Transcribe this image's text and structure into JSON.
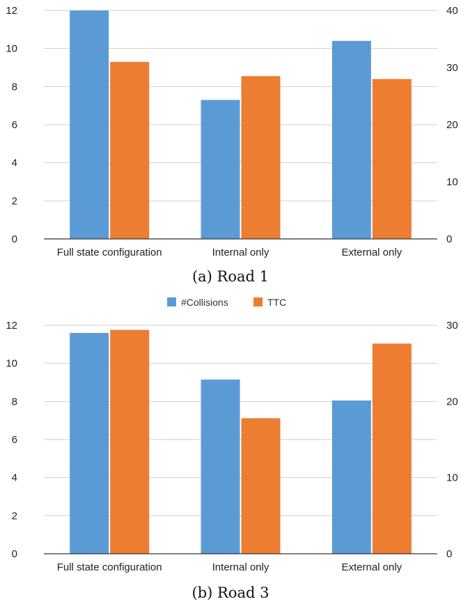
{
  "colors": {
    "collisions": "#5b9bd5",
    "ttc": "#ed7d31",
    "grid": "#cfcfcf",
    "axis": "#333333"
  },
  "legend": {
    "items": [
      {
        "label": "#Collisions",
        "color": "#5b9bd5"
      },
      {
        "label": "TTC",
        "color": "#ed7d31"
      }
    ]
  },
  "chart_data": [
    {
      "type": "bar",
      "caption": "(a) Road 1",
      "categories": [
        "Full state configuration",
        "Internal only",
        "External only"
      ],
      "series": [
        {
          "name": "#Collisions",
          "axis": "left",
          "values": [
            12.0,
            7.3,
            10.4
          ]
        },
        {
          "name": "TTC",
          "axis": "right",
          "values": [
            31.0,
            28.5,
            28.0
          ]
        }
      ],
      "ylim_left": [
        0,
        12
      ],
      "yticks_left": [
        0,
        2,
        4,
        6,
        8,
        10,
        12
      ],
      "ylim_right": [
        0,
        40
      ],
      "yticks_right": [
        0,
        10,
        20,
        30,
        40
      ],
      "grid": true
    },
    {
      "type": "bar",
      "caption": "(b) Road 3",
      "categories": [
        "Full state configuration",
        "Internal only",
        "External only"
      ],
      "series": [
        {
          "name": "#Collisions",
          "axis": "left",
          "values": [
            11.6,
            9.15,
            8.05
          ]
        },
        {
          "name": "TTC",
          "axis": "right",
          "values": [
            29.4,
            17.8,
            27.6
          ]
        }
      ],
      "ylim_left": [
        0,
        12
      ],
      "yticks_left": [
        0,
        2,
        4,
        6,
        8,
        10,
        12
      ],
      "ylim_right": [
        0,
        30
      ],
      "yticks_right": [
        0,
        10,
        20,
        30
      ],
      "grid": true
    }
  ]
}
